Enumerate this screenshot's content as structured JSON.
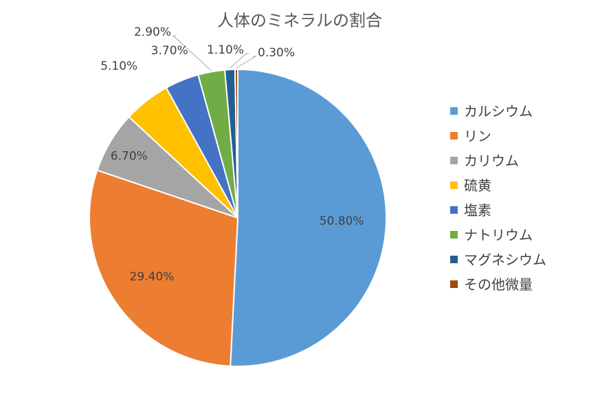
{
  "chart_data": {
    "type": "pie",
    "title": "人体のミネラルの割合",
    "legend_position": "right",
    "categories": [
      "カルシウム",
      "リン",
      "カリウム",
      "硫黄",
      "塩素",
      "ナトリウム",
      "マグネシウム",
      "その他微量"
    ],
    "values": [
      50.8,
      29.4,
      6.7,
      5.1,
      3.7,
      2.9,
      1.1,
      0.3
    ],
    "data_labels": [
      "50.80%",
      "29.40%",
      "6.70%",
      "5.10%",
      "3.70%",
      "2.90%",
      "1.10%",
      "0.30%"
    ],
    "colors": [
      "#5B9BD5",
      "#ED7D31",
      "#A5A5A5",
      "#FFC000",
      "#4472C4",
      "#70AD47",
      "#255E91",
      "#9E480E"
    ]
  }
}
